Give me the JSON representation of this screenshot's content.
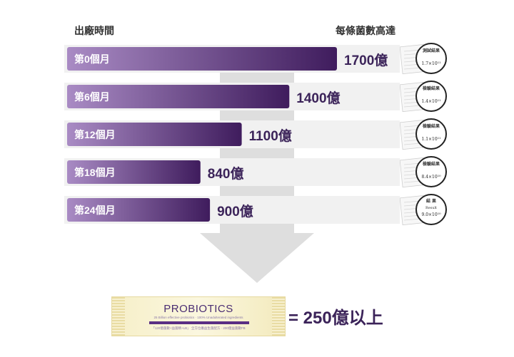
{
  "chart_data": {
    "type": "bar",
    "orientation": "horizontal",
    "xlabel": "出廠時間",
    "ylabel": "每條菌數高達",
    "categories": [
      "第0個月",
      "第6個月",
      "第12個月",
      "第18個月",
      "第24個月"
    ],
    "values": [
      1700,
      1400,
      1100,
      840,
      900
    ],
    "unit": "億",
    "value_labels": [
      "1700億",
      "1400億",
      "1100億",
      "840億",
      "900億"
    ],
    "result_cards": [
      {
        "title": "測試結果",
        "value": "1.7×10¹¹"
      },
      {
        "title": "檢驗結果",
        "value": "1.4×10¹¹"
      },
      {
        "title": "檢驗結果",
        "value": "1.1×10¹¹"
      },
      {
        "title": "檢驗結果",
        "value": "8.4×10¹⁰"
      },
      {
        "title": "結 果",
        "subtitle": "Result",
        "value": "9.0×10¹⁰"
      }
    ],
    "colors": {
      "bar_start": "#a98bc4",
      "bar_end": "#3f1c5d",
      "row_bg": "#f1f1f1",
      "label": "#3b2359"
    }
  },
  "header": {
    "left": "出廠時間",
    "right": "每條菌數高達"
  },
  "product": {
    "brand": "PROBIOTICS",
    "subtitle": "25 Billion effective probiotics · 100% Unadulterated ingredients",
    "note": "「120億菌數+益菌精+LB」 全方位養益生菌配方 · 200億益菌數FB"
  },
  "summary": "= 250億以上"
}
